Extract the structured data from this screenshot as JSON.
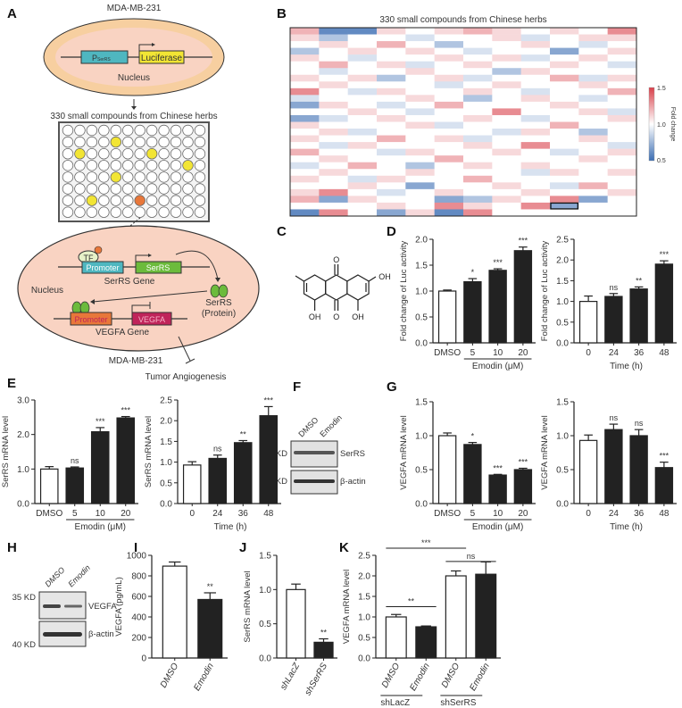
{
  "panel_letters": [
    "A",
    "B",
    "C",
    "D",
    "E",
    "F",
    "G",
    "H",
    "I",
    "J",
    "K"
  ],
  "panel_a": {
    "cell_line_top": "MDA-MB-231",
    "promoter_top": "P",
    "promoter_top_sub": "SerRS",
    "luciferase": "Luciferase",
    "nucleus_top": "Nucleus",
    "screen_label": "330 small compounds from Chinese herbs",
    "plate_hits_yellow": [
      [
        4,
        1
      ],
      [
        1,
        2
      ],
      [
        7,
        2
      ],
      [
        10,
        3
      ],
      [
        4,
        4
      ],
      [
        2,
        6
      ]
    ],
    "plate_hit_orange": [
      6,
      6
    ],
    "tf": "TF",
    "promoter1": "Promoter",
    "serrs_gene_box": "SerRS",
    "serrs_gene": "SerRS Gene",
    "nucleus_bottom": "Nucleus",
    "serrs_protein_1": "SerRS",
    "serrs_protein_2": "(Protein)",
    "promoter2": "Promoter",
    "vegfa_box": "VEGFA",
    "vegfa_gene": "VEGFA Gene",
    "cell_line_bottom": "MDA-MB-231",
    "outcome": "Tumor Angiogenesis",
    "colors": {
      "ellipse": "#f7c9a8",
      "ellipse_inner": "#f9d9c8",
      "promoter_teal": "#4fb7c0",
      "yellow": "#f2e534",
      "green": "#6cbb3c",
      "orange": "#e8773a",
      "vegfa": "#c0245a"
    }
  },
  "panel_c": {
    "labels": [
      "O",
      "O",
      "OH",
      "OH",
      "OH"
    ]
  },
  "blot_f": {
    "lanes": [
      "DMSO",
      "Emodin"
    ],
    "markers": [
      "55 KD",
      "40 KD"
    ],
    "bands": [
      "SerRS",
      "β-actin"
    ]
  },
  "blot_h": {
    "lanes": [
      "DMSO",
      "Emodin"
    ],
    "markers": [
      "35 KD",
      "40 KD"
    ],
    "bands": [
      "VEGFA",
      "β-actin"
    ]
  },
  "chart_data": [
    {
      "id": "B",
      "type": "heatmap",
      "title": "330 small compounds from Chinese herbs",
      "colorbar": {
        "label": "Fold change",
        "ticks": [
          "1.5",
          "1.0",
          "0.5"
        ],
        "range": [
          0.5,
          1.5
        ],
        "low": "#3b6db3",
        "mid": "#ffffff",
        "high": "#d9404a"
      },
      "highlight": {
        "row": 26,
        "col": 9
      },
      "values": [
        [
          1.2,
          0.6,
          0.6,
          1.1,
          1.0,
          1.1,
          1.2,
          1.1,
          1.0,
          1.1,
          1.0,
          1.3
        ],
        [
          1.1,
          0.8,
          1.0,
          1.0,
          0.9,
          1.0,
          1.0,
          1.1,
          0.9,
          1.0,
          1.1,
          1.1
        ],
        [
          1.0,
          1.1,
          1.0,
          1.2,
          1.0,
          0.8,
          1.0,
          1.0,
          1.1,
          1.0,
          0.9,
          1.0
        ],
        [
          0.8,
          1.0,
          1.1,
          1.0,
          1.1,
          1.0,
          0.9,
          1.0,
          1.0,
          0.7,
          1.0,
          1.1
        ],
        [
          1.1,
          1.0,
          0.9,
          1.0,
          1.0,
          1.1,
          1.0,
          1.1,
          0.9,
          1.0,
          1.1,
          1.0
        ],
        [
          1.0,
          1.2,
          1.0,
          1.1,
          0.9,
          1.0,
          1.1,
          1.0,
          1.0,
          1.1,
          1.0,
          0.9
        ],
        [
          1.0,
          0.9,
          1.0,
          1.0,
          1.1,
          1.0,
          1.0,
          0.8,
          1.1,
          1.0,
          1.0,
          1.0
        ],
        [
          1.1,
          1.0,
          1.1,
          0.8,
          1.0,
          1.1,
          0.9,
          1.0,
          1.0,
          1.2,
          0.9,
          1.1
        ],
        [
          1.0,
          1.1,
          1.0,
          1.0,
          1.0,
          0.9,
          1.0,
          1.1,
          1.0,
          1.0,
          1.1,
          1.0
        ],
        [
          1.3,
          1.0,
          0.9,
          1.1,
          1.0,
          1.0,
          1.1,
          1.0,
          0.9,
          1.0,
          1.0,
          1.2
        ],
        [
          0.9,
          1.0,
          1.0,
          1.0,
          1.1,
          1.0,
          0.8,
          1.0,
          1.1,
          1.0,
          0.9,
          1.0
        ],
        [
          0.7,
          1.1,
          1.0,
          0.9,
          1.0,
          1.2,
          1.0,
          1.0,
          1.0,
          1.1,
          1.0,
          1.0
        ],
        [
          1.0,
          1.0,
          1.1,
          1.0,
          0.9,
          1.0,
          1.0,
          1.3,
          1.0,
          1.0,
          1.1,
          0.9
        ],
        [
          0.7,
          0.9,
          1.0,
          1.1,
          1.0,
          1.0,
          1.1,
          1.0,
          0.9,
          1.0,
          1.0,
          1.1
        ],
        [
          1.1,
          1.0,
          1.0,
          1.0,
          1.1,
          0.9,
          1.0,
          1.0,
          1.0,
          1.2,
          1.0,
          1.0
        ],
        [
          1.0,
          1.1,
          0.9,
          1.0,
          1.0,
          1.0,
          1.0,
          0.9,
          1.1,
          1.0,
          0.8,
          1.0
        ],
        [
          1.1,
          1.0,
          1.0,
          1.2,
          1.0,
          1.1,
          0.9,
          1.0,
          1.0,
          1.0,
          1.1,
          1.0
        ],
        [
          1.0,
          0.9,
          1.1,
          1.0,
          1.0,
          1.0,
          1.1,
          1.0,
          1.3,
          1.0,
          1.0,
          0.9
        ],
        [
          1.2,
          1.0,
          1.0,
          0.9,
          1.1,
          1.0,
          1.0,
          1.1,
          1.0,
          0.9,
          1.0,
          1.1
        ],
        [
          1.0,
          1.1,
          1.0,
          1.0,
          1.0,
          1.2,
          1.0,
          1.0,
          1.0,
          1.0,
          1.1,
          1.0
        ],
        [
          0.9,
          1.0,
          1.2,
          1.0,
          0.8,
          1.0,
          1.1,
          1.0,
          1.1,
          1.0,
          1.0,
          1.0
        ],
        [
          1.0,
          1.1,
          1.0,
          1.0,
          1.1,
          1.0,
          1.0,
          1.0,
          0.9,
          1.1,
          1.0,
          1.1
        ],
        [
          1.1,
          1.0,
          0.9,
          1.1,
          1.0,
          1.0,
          1.2,
          1.0,
          1.0,
          1.0,
          1.0,
          1.0
        ],
        [
          1.0,
          1.0,
          1.1,
          1.0,
          0.7,
          1.0,
          1.0,
          1.1,
          1.0,
          0.9,
          1.2,
          1.0
        ],
        [
          1.1,
          1.3,
          1.0,
          0.9,
          1.0,
          1.1,
          1.0,
          1.0,
          1.1,
          1.0,
          1.0,
          1.1
        ],
        [
          1.2,
          0.7,
          1.1,
          1.0,
          1.0,
          0.7,
          0.8,
          1.1,
          1.0,
          1.3,
          0.7,
          1.0
        ],
        [
          1.0,
          1.0,
          1.0,
          1.1,
          1.0,
          1.3,
          1.1,
          1.0,
          1.3,
          0.7,
          1.0,
          1.0
        ],
        [
          0.6,
          1.3,
          1.0,
          0.7,
          1.1,
          0.6,
          1.3,
          1.0,
          1.0,
          1.0,
          1.0,
          1.0
        ]
      ]
    },
    {
      "id": "D1",
      "type": "bar",
      "ylabel": "Fold change of Luc activity",
      "categories": [
        "DMSO",
        "5",
        "10",
        "20"
      ],
      "values": [
        1.0,
        1.18,
        1.4,
        1.78
      ],
      "errors": [
        0.02,
        0.06,
        0.03,
        0.07
      ],
      "significance": [
        "",
        "*",
        "***",
        "***"
      ],
      "fills": [
        "white",
        "black",
        "black",
        "black"
      ],
      "ylim": [
        0,
        2.0
      ],
      "yticks": [
        "0.0",
        "0.5",
        "1.0",
        "1.5",
        "2.0"
      ],
      "group_label": "Emodin (μM)",
      "xlabel": ""
    },
    {
      "id": "D2",
      "type": "bar",
      "ylabel": "Fold change of Luc activity",
      "categories": [
        "0",
        "24",
        "36",
        "48"
      ],
      "values": [
        1.0,
        1.12,
        1.3,
        1.9
      ],
      "errors": [
        0.13,
        0.07,
        0.05,
        0.08
      ],
      "significance": [
        "",
        "ns",
        "**",
        "***"
      ],
      "fills": [
        "white",
        "black",
        "black",
        "black"
      ],
      "ylim": [
        0,
        2.5
      ],
      "yticks": [
        "0.0",
        "0.5",
        "1.0",
        "1.5",
        "2.0",
        "2.5"
      ],
      "xlabel": "Time (h)"
    },
    {
      "id": "E1",
      "type": "bar",
      "ylabel": "SerRS mRNA level",
      "categories": [
        "DMSO",
        "5",
        "10",
        "20"
      ],
      "values": [
        1.0,
        1.03,
        2.08,
        2.48
      ],
      "errors": [
        0.07,
        0.03,
        0.12,
        0.04
      ],
      "significance": [
        "",
        "ns",
        "***",
        "***"
      ],
      "fills": [
        "white",
        "black",
        "black",
        "black"
      ],
      "ylim": [
        0,
        3.0
      ],
      "yticks": [
        "0.0",
        "1.0",
        "2.0",
        "3.0"
      ],
      "group_label": "Emodin (μM)",
      "xlabel": ""
    },
    {
      "id": "E2",
      "type": "bar",
      "ylabel": "SerRS mRNA level",
      "categories": [
        "0",
        "24",
        "36",
        "48"
      ],
      "values": [
        0.93,
        1.09,
        1.47,
        2.12
      ],
      "errors": [
        0.08,
        0.08,
        0.05,
        0.22
      ],
      "significance": [
        "",
        "ns",
        "**",
        "***"
      ],
      "fills": [
        "white",
        "black",
        "black",
        "black"
      ],
      "ylim": [
        0,
        2.5
      ],
      "yticks": [
        "0.0",
        "0.5",
        "1.0",
        "1.5",
        "2.0",
        "2.5"
      ],
      "xlabel": "Time (h)"
    },
    {
      "id": "G1",
      "type": "bar",
      "ylabel": "VEGFA mRNA level",
      "categories": [
        "DMSO",
        "5",
        "10",
        "20"
      ],
      "values": [
        1.0,
        0.87,
        0.42,
        0.5
      ],
      "errors": [
        0.04,
        0.03,
        0.01,
        0.02
      ],
      "significance": [
        "",
        "*",
        "***",
        "***"
      ],
      "fills": [
        "white",
        "black",
        "black",
        "black"
      ],
      "ylim": [
        0,
        1.5
      ],
      "yticks": [
        "0.0",
        "0.5",
        "1.0",
        "1.5"
      ],
      "group_label": "Emodin (μM)",
      "xlabel": ""
    },
    {
      "id": "G2",
      "type": "bar",
      "ylabel": "VEGFA mRNA level",
      "categories": [
        "0",
        "24",
        "36",
        "48"
      ],
      "values": [
        0.93,
        1.09,
        1.0,
        0.53
      ],
      "errors": [
        0.08,
        0.08,
        0.09,
        0.08
      ],
      "significance": [
        "",
        "ns",
        "ns",
        "***"
      ],
      "fills": [
        "white",
        "black",
        "black",
        "black"
      ],
      "ylim": [
        0,
        1.5
      ],
      "yticks": [
        "0.0",
        "0.5",
        "1.0",
        "1.5"
      ],
      "xlabel": "Time (h)"
    },
    {
      "id": "I",
      "type": "bar",
      "ylabel": "VEGFA (pg/mL)",
      "categories": [
        "DMSO",
        "Emodin"
      ],
      "values": [
        895,
        570
      ],
      "errors": [
        40,
        65
      ],
      "significance": [
        "",
        "**"
      ],
      "fills": [
        "white",
        "black"
      ],
      "ylim": [
        0,
        1000
      ],
      "yticks": [
        "0",
        "200",
        "400",
        "600",
        "800",
        "1000"
      ],
      "rotate_labels": true
    },
    {
      "id": "J",
      "type": "bar",
      "ylabel": "SerRS mRNA level",
      "categories": [
        "shLacZ",
        "shSerRS"
      ],
      "values": [
        1.0,
        0.23
      ],
      "errors": [
        0.08,
        0.05
      ],
      "significance": [
        "",
        "**"
      ],
      "fills": [
        "white",
        "black"
      ],
      "ylim": [
        0,
        1.5
      ],
      "yticks": [
        "0.0",
        "0.5",
        "1.0",
        "1.5"
      ],
      "rotate_labels": true
    },
    {
      "id": "K",
      "type": "bar",
      "ylabel": "VEGFA mRNA level",
      "categories": [
        "DMSO",
        "Emodin",
        "DMSO",
        "Emodin"
      ],
      "values": [
        1.0,
        0.76,
        2.0,
        2.04
      ],
      "errors": [
        0.06,
        0.02,
        0.12,
        0.3
      ],
      "significance": [
        "",
        "",
        "",
        ""
      ],
      "fills": [
        "white",
        "black",
        "white",
        "black"
      ],
      "ylim": [
        0,
        2.5
      ],
      "yticks": [
        "0.0",
        "0.5",
        "1.0",
        "1.5",
        "2.0",
        "2.5"
      ],
      "rotate_labels": true,
      "groups": [
        {
          "label": "shLacZ",
          "from": 0,
          "to": 1
        },
        {
          "label": "shSerRS",
          "from": 2,
          "to": 3
        }
      ],
      "comparisons": [
        {
          "a": 0,
          "b": 1,
          "label": "**"
        },
        {
          "a": 0,
          "b": 2,
          "label": "***"
        },
        {
          "a": 2,
          "b": 3,
          "label": "ns"
        }
      ]
    }
  ]
}
